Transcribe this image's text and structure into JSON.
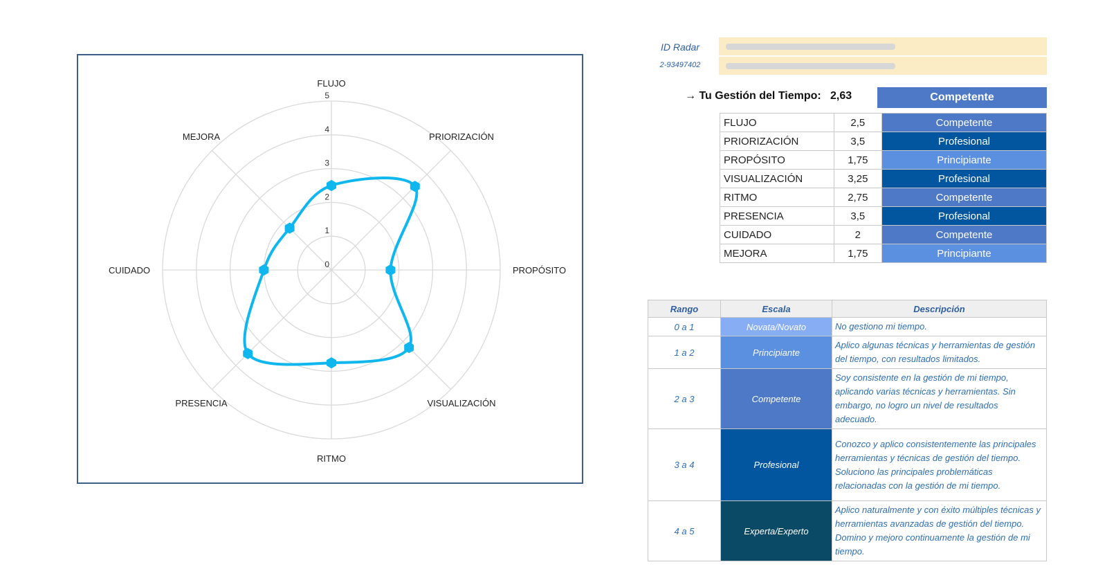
{
  "chart_data": {
    "type": "radar",
    "categories": [
      "FLUJO",
      "PRIORIZACIÓN",
      "PROPÓSITO",
      "VISUALIZACIÓN",
      "RITMO",
      "PRESENCIA",
      "CUIDADO",
      "MEJORA"
    ],
    "values": [
      2.5,
      3.5,
      1.75,
      3.25,
      2.75,
      3.5,
      2,
      1.75
    ],
    "range": [
      0,
      5
    ],
    "ticks": [
      "0",
      "1",
      "2",
      "3",
      "4",
      "5"
    ],
    "grid": true,
    "colors": {
      "series": "#10b7ef",
      "grid": "#d9d9d9"
    }
  },
  "header": {
    "id_label": "ID Radar",
    "id_value": "2-93497402"
  },
  "summary": {
    "label": "→ Tu Gestión del Tiempo:",
    "value": "2,63",
    "level": "Competente"
  },
  "scores": [
    {
      "name": "FLUJO",
      "value": "2,5",
      "level": "Competente",
      "color": "#4d79c7"
    },
    {
      "name": "PRIORIZACIÓN",
      "value": "3,5",
      "level": "Profesional",
      "color": "#02559f"
    },
    {
      "name": "PROPÓSITO",
      "value": "1,75",
      "level": "Principiante",
      "color": "#5b8fe0"
    },
    {
      "name": "VISUALIZACIÓN",
      "value": "3,25",
      "level": "Profesional",
      "color": "#02559f"
    },
    {
      "name": "RITMO",
      "value": "2,75",
      "level": "Competente",
      "color": "#4d79c7"
    },
    {
      "name": "PRESENCIA",
      "value": "3,5",
      "level": "Profesional",
      "color": "#02559f"
    },
    {
      "name": "CUIDADO",
      "value": "2",
      "level": "Competente",
      "color": "#4d79c7"
    },
    {
      "name": "MEJORA",
      "value": "1,75",
      "level": "Principiante",
      "color": "#5b8fe0"
    }
  ],
  "legend": {
    "headers": [
      "Rango",
      "Escala",
      "Descripción"
    ],
    "rows": [
      {
        "range": "0 a 1",
        "scale": "Novata/Novato",
        "color": "#87aef5",
        "description": "No gestiono mi tiempo."
      },
      {
        "range": "1 a 2",
        "scale": "Principiante",
        "color": "#5b8fe0",
        "description": "Aplico algunas técnicas y herramientas de gestión del tiempo, con resultados limitados."
      },
      {
        "range": "2 a 3",
        "scale": "Competente",
        "color": "#4d79c7",
        "description": "Soy consistente en la gestión de mi tiempo, aplicando varias técnicas y herramientas. Sin embargo, no logro un nivel de resultados adecuado."
      },
      {
        "range": "3 a 4",
        "scale": "Profesional",
        "color": "#02559f",
        "description": "Conozco y aplico consistentemente las principales herramientas y técnicas de gestión del tiempo. Soluciono las principales problemáticas relacionadas con la gestión de mi tiempo."
      },
      {
        "range": "4 a 5",
        "scale": "Experta/Experto",
        "color": "#0b4a66",
        "description": "Aplico naturalmente y con éxito múltiples técnicas y herramientas avanzadas de gestión del tiempo. Domino y mejoro continuamente la gestión de mi tiempo."
      }
    ]
  }
}
